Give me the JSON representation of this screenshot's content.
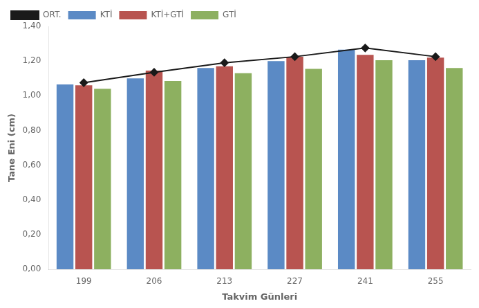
{
  "chart_data": {
    "type": "bar",
    "xlabel": "Takvim Günleri",
    "ylabel": "Tane Eni (cm)",
    "categories": [
      199,
      206,
      213,
      227,
      241,
      255
    ],
    "series": [
      {
        "name": "KTİ",
        "color": "#5B8AC5",
        "values": [
          1.065,
          1.1,
          1.16,
          1.2,
          1.265,
          1.205
        ]
      },
      {
        "name": "KTİ+GTİ",
        "color": "#B85450",
        "values": [
          1.06,
          1.145,
          1.17,
          1.225,
          1.235,
          1.22
        ]
      },
      {
        "name": "GTİ",
        "color": "#8DB060",
        "values": [
          1.04,
          1.085,
          1.13,
          1.155,
          1.205,
          1.16
        ]
      },
      {
        "name": "ORT.",
        "type": "line",
        "color": "#1a1a1a",
        "marker": "diamond",
        "values": [
          1.075,
          1.135,
          1.19,
          1.225,
          1.275,
          1.225
        ]
      }
    ],
    "ylim": [
      0.0,
      1.4
    ],
    "yticks": [
      {
        "value": 0.0,
        "label": "0,00"
      },
      {
        "value": 0.2,
        "label": "0,20"
      },
      {
        "value": 0.4,
        "label": "0,40"
      },
      {
        "value": 0.6,
        "label": "0,60"
      },
      {
        "value": 0.8,
        "label": "0,80"
      },
      {
        "value": 1.0,
        "label": "1,00"
      },
      {
        "value": 1.2,
        "label": "1,20"
      },
      {
        "value": 1.4,
        "label": "1,40"
      }
    ],
    "grid": false,
    "legend": "upper left"
  }
}
